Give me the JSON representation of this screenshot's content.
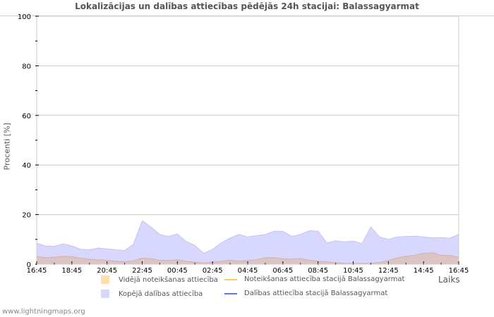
{
  "header": {
    "title": "Lokalizācijas un dalības attiecības pēdējās 24h stacijai: Balassagyarmat"
  },
  "footer": {
    "credit": "www.lightningmaps.org"
  },
  "legend": {
    "items": [
      {
        "label": "Vidējā noteikšanas attiecība",
        "type": "area",
        "color": "#ffe0a8"
      },
      {
        "label": "Noteikšanas attiecība stacijā Balassagyarmat",
        "type": "line",
        "color": "#ffc860"
      },
      {
        "label": "Kopējā dalības attiecība",
        "type": "area",
        "color": "#d8d8ff"
      },
      {
        "label": "Dalības attiecība stacijā Balassagyarmat",
        "type": "line",
        "color": "#7070e0"
      }
    ]
  },
  "colors": {
    "participation_fill": "#d8d8fe",
    "participation_edge": "#c4c4f4",
    "detection_fill": "#dcc4c4",
    "detection_edge": "#d4b0a8",
    "grid": "#cccccc",
    "axis_text": "#000000"
  },
  "chart_data": {
    "type": "area",
    "title": "Lokalizācijas un dalības attiecības pēdējās 24h stacijai: Balassagyarmat",
    "xlabel": "Laiks",
    "ylabel": "Procenti   [%]",
    "ylim": [
      0,
      100
    ],
    "yticks": [
      0,
      20,
      40,
      60,
      80,
      100
    ],
    "xtick_labels": [
      "16:45",
      "18:45",
      "20:45",
      "22:45",
      "00:45",
      "02:45",
      "04:45",
      "06:45",
      "08:45",
      "10:45",
      "12:45",
      "14:45",
      "16:45"
    ],
    "grid": true,
    "legend_position": "bottom",
    "x": [
      "16:45",
      "17:15",
      "17:45",
      "18:15",
      "18:45",
      "19:15",
      "19:45",
      "20:15",
      "20:45",
      "21:15",
      "21:45",
      "22:15",
      "22:45",
      "23:15",
      "23:45",
      "00:15",
      "00:45",
      "01:15",
      "01:45",
      "02:15",
      "02:45",
      "03:15",
      "03:45",
      "04:15",
      "04:45",
      "05:15",
      "05:45",
      "06:15",
      "06:45",
      "07:15",
      "07:45",
      "08:15",
      "08:45",
      "09:15",
      "09:45",
      "10:15",
      "10:45",
      "11:15",
      "11:45",
      "12:15",
      "12:45",
      "13:15",
      "13:45",
      "14:15",
      "14:45",
      "15:15",
      "15:45",
      "16:15",
      "16:45"
    ],
    "series": [
      {
        "name": "Kopējā dalības attiecība",
        "values": [
          8.5,
          7.3,
          7.2,
          8.2,
          7.4,
          6.0,
          5.8,
          6.5,
          6.2,
          5.8,
          5.5,
          8.0,
          17.5,
          15.0,
          12.0,
          11.2,
          12.2,
          9.2,
          7.5,
          4.4,
          6.0,
          8.6,
          10.5,
          12.0,
          11.0,
          11.5,
          12.0,
          13.3,
          13.3,
          11.2,
          12.0,
          13.5,
          13.3,
          8.6,
          9.4,
          9.0,
          9.3,
          8.3,
          15.0,
          11.0,
          10.0,
          11.0,
          11.2,
          11.3,
          11.0,
          10.6,
          10.7,
          10.5,
          12.0
        ]
      },
      {
        "name": "Vidējā noteikšanas attiecība",
        "values": [
          3.0,
          2.6,
          2.8,
          3.2,
          3.0,
          2.4,
          2.0,
          1.7,
          1.6,
          1.2,
          1.0,
          1.3,
          2.5,
          2.2,
          1.6,
          1.5,
          1.8,
          1.2,
          0.8,
          0.5,
          0.8,
          1.2,
          1.6,
          1.2,
          1.5,
          1.8,
          2.6,
          2.6,
          2.2,
          2.0,
          2.3,
          1.6,
          1.2,
          0.9,
          0.6,
          0.3,
          0.3,
          0.3,
          0.3,
          0.7,
          1.5,
          2.5,
          3.2,
          3.6,
          4.4,
          4.6,
          3.6,
          3.5,
          2.8
        ]
      },
      {
        "name": "Noteikšanas attiecība stacijā Balassagyarmat",
        "values": []
      },
      {
        "name": "Dalības attiecība stacijā Balassagyarmat",
        "values": []
      }
    ]
  }
}
